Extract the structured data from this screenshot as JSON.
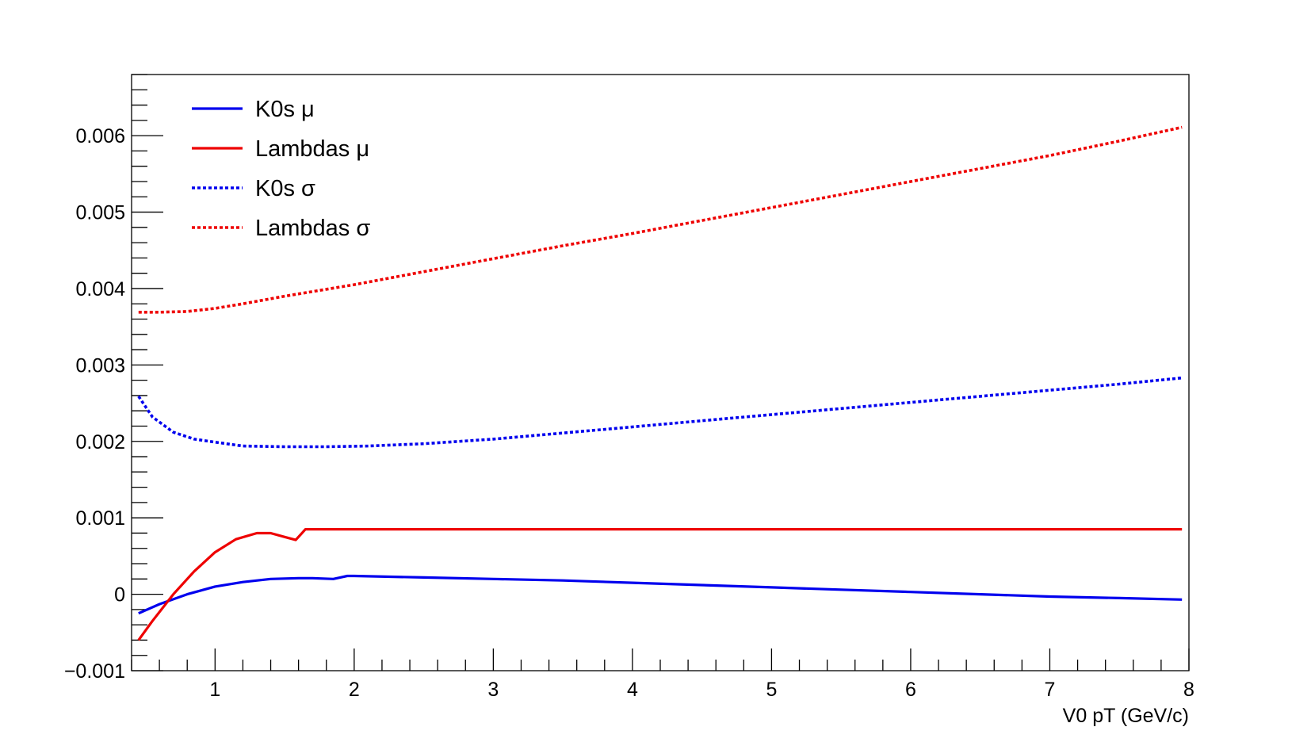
{
  "chart_data": {
    "type": "line",
    "title": "",
    "xlabel": "V0 pT (GeV/c)",
    "ylabel": "",
    "xlim": [
      0.4,
      8.0
    ],
    "ylim": [
      -0.001,
      0.0068
    ],
    "grid": false,
    "legend_position": "top-left",
    "x_ticks": [
      {
        "value": 1,
        "label": "1"
      },
      {
        "value": 2,
        "label": "2"
      },
      {
        "value": 3,
        "label": "3"
      },
      {
        "value": 4,
        "label": "4"
      },
      {
        "value": 5,
        "label": "5"
      },
      {
        "value": 6,
        "label": "6"
      },
      {
        "value": 7,
        "label": "7"
      },
      {
        "value": 8,
        "label": "8"
      }
    ],
    "y_ticks": [
      {
        "value": -0.001,
        "label": "−0.001"
      },
      {
        "value": 0,
        "label": "0"
      },
      {
        "value": 0.001,
        "label": "0.001"
      },
      {
        "value": 0.002,
        "label": "0.002"
      },
      {
        "value": 0.003,
        "label": "0.003"
      },
      {
        "value": 0.004,
        "label": "0.004"
      },
      {
        "value": 0.005,
        "label": "0.005"
      },
      {
        "value": 0.006,
        "label": "0.006"
      }
    ],
    "series": [
      {
        "name": "K0s μ",
        "color": "#0000ee",
        "style": "solid",
        "x": [
          0.45,
          0.6,
          0.8,
          1.0,
          1.2,
          1.4,
          1.6,
          1.7,
          1.85,
          1.9,
          1.95,
          2.0,
          2.5,
          3.0,
          3.5,
          4.0,
          4.5,
          5.0,
          5.5,
          6.0,
          6.5,
          7.0,
          7.5,
          7.95
        ],
        "y": [
          -0.00025,
          -0.00013,
          0.0,
          0.0001,
          0.00016,
          0.0002,
          0.00021,
          0.00021,
          0.0002,
          0.00022,
          0.00024,
          0.00024,
          0.00022,
          0.0002,
          0.00018,
          0.00015,
          0.00012,
          9e-05,
          6e-05,
          3e-05,
          0.0,
          -3e-05,
          -5e-05,
          -7e-05
        ]
      },
      {
        "name": "Lambdas μ",
        "color": "#ee0000",
        "style": "solid",
        "x": [
          0.45,
          0.55,
          0.7,
          0.85,
          1.0,
          1.15,
          1.3,
          1.4,
          1.5,
          1.58,
          1.65,
          2.0,
          3.0,
          4.0,
          5.0,
          6.0,
          7.0,
          7.95
        ],
        "y": [
          -0.0006,
          -0.00035,
          0.0,
          0.0003,
          0.00055,
          0.00072,
          0.0008,
          0.0008,
          0.00075,
          0.00071,
          0.00085,
          0.00085,
          0.00085,
          0.00085,
          0.00085,
          0.00085,
          0.00085,
          0.00085
        ]
      },
      {
        "name": "K0s σ",
        "color": "#0000ee",
        "style": "dotted",
        "x": [
          0.45,
          0.55,
          0.7,
          0.85,
          1.0,
          1.2,
          1.5,
          1.8,
          2.1,
          2.5,
          3.0,
          3.5,
          4.0,
          4.5,
          5.0,
          5.5,
          6.0,
          6.5,
          7.0,
          7.5,
          7.95
        ],
        "y": [
          0.00259,
          0.00232,
          0.00212,
          0.00203,
          0.00199,
          0.00194,
          0.00193,
          0.00193,
          0.00194,
          0.00197,
          0.00203,
          0.00211,
          0.00219,
          0.00227,
          0.00235,
          0.00243,
          0.00251,
          0.00259,
          0.00267,
          0.00275,
          0.00283
        ]
      },
      {
        "name": "Lambdas σ",
        "color": "#ee0000",
        "style": "dotted",
        "x": [
          0.45,
          0.6,
          0.8,
          1.0,
          1.2,
          1.5,
          2.0,
          2.5,
          3.0,
          3.5,
          4.0,
          4.5,
          5.0,
          5.5,
          6.0,
          6.5,
          7.0,
          7.5,
          7.95
        ],
        "y": [
          0.00369,
          0.00369,
          0.0037,
          0.00374,
          0.0038,
          0.0039,
          0.00405,
          0.00422,
          0.00439,
          0.00456,
          0.00472,
          0.00489,
          0.00506,
          0.00523,
          0.0054,
          0.00557,
          0.00574,
          0.00593,
          0.00611
        ]
      }
    ]
  }
}
